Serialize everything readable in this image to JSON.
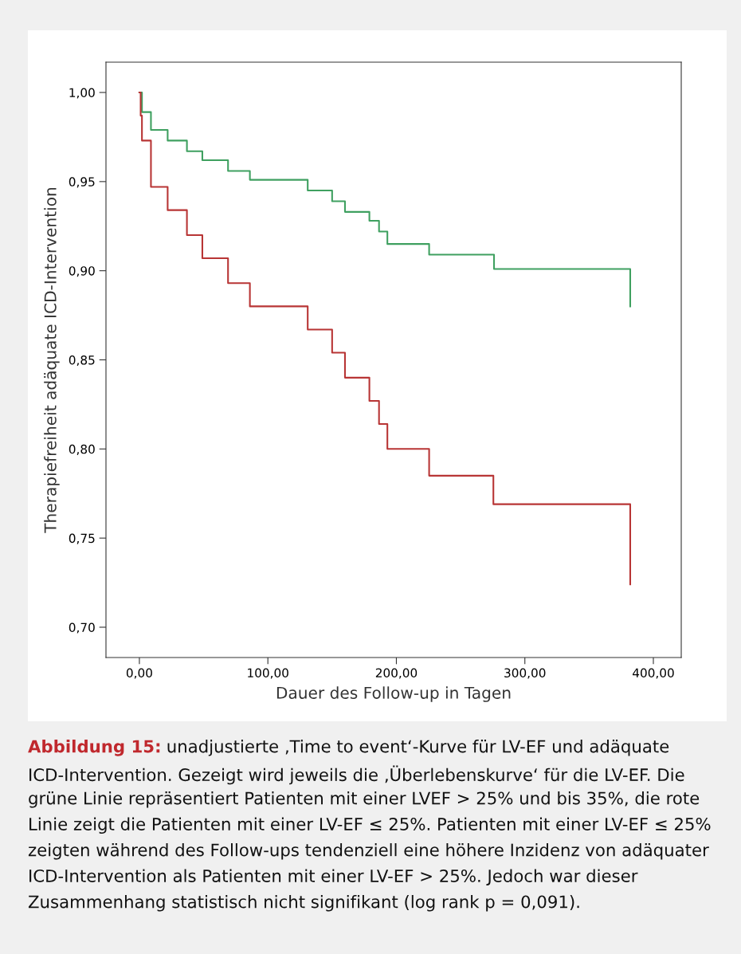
{
  "chart_data": {
    "type": "step",
    "xlabel": "Dauer des Follow-up in Tagen",
    "ylabel": "Therapiefreiheit adäquate ICD-Intervention",
    "series": [
      {
        "color": "#3fa060",
        "x": [
          0,
          2,
          9,
          22,
          37,
          49,
          69,
          86,
          131,
          150,
          160,
          179,
          186.5,
          193,
          225.5,
          276,
          382,
          382
        ],
        "values": [
          1.0,
          0.989,
          0.979,
          0.973,
          0.967,
          0.962,
          0.956,
          0.951,
          0.945,
          0.939,
          0.933,
          0.928,
          0.922,
          0.915,
          0.909,
          0.901,
          0.901,
          0.88
        ]
      },
      {
        "color": "#b83535",
        "x": [
          0,
          1,
          2,
          9,
          22,
          37,
          49,
          69,
          86,
          131,
          150,
          160,
          179,
          186.5,
          193,
          225.5,
          275.5,
          382,
          382
        ],
        "values": [
          1.0,
          0.987,
          0.973,
          0.947,
          0.934,
          0.92,
          0.907,
          0.893,
          0.88,
          0.867,
          0.854,
          0.84,
          0.827,
          0.814,
          0.8,
          0.785,
          0.769,
          0.769,
          0.724
        ]
      }
    ],
    "xlim": [
      -26,
      421.7
    ],
    "ylim": [
      0.683,
      1.017
    ],
    "xticks": [
      {
        "value": 0,
        "label": "0,00"
      },
      {
        "value": 100,
        "label": "100,00"
      },
      {
        "value": 200,
        "label": "200,00"
      },
      {
        "value": 300,
        "label": "300,00"
      },
      {
        "value": 400,
        "label": "400,00"
      }
    ],
    "yticks": [
      {
        "value": 0.7,
        "label": "0,70"
      },
      {
        "value": 0.75,
        "label": "0,75"
      },
      {
        "value": 0.8,
        "label": "0,80"
      },
      {
        "value": 0.85,
        "label": "0,85"
      },
      {
        "value": 0.9,
        "label": "0,90"
      },
      {
        "value": 0.95,
        "label": "0,95"
      },
      {
        "value": 1.0,
        "label": "1,00"
      }
    ],
    "grid": false,
    "annotations": [
      "Abbildung 15:",
      "unadjustierte ‚Time to event‘-Kurve für LV-EF und adäquate ICD-Intervention. Gezeigt wird jeweils die ‚Überlebenskurve‘ für die LV-EF. Die grüne Linie repräsentiert Patienten mit einer LVEF > 25% und bis 35%, die rote Linie zeigt die Patienten mit einer LV-EF ≤ 25%. Patienten mit einer LV-EF ≤ 25% zeigten während des Follow-ups tendenziell eine höhere Inzidenz von adäquater ICD-Intervention als Patienten mit einer LV-EF > 25%. Jedoch war dieser Zusammenhang statistisch nicht signifikant (log rank p = 0,091)."
    ]
  }
}
